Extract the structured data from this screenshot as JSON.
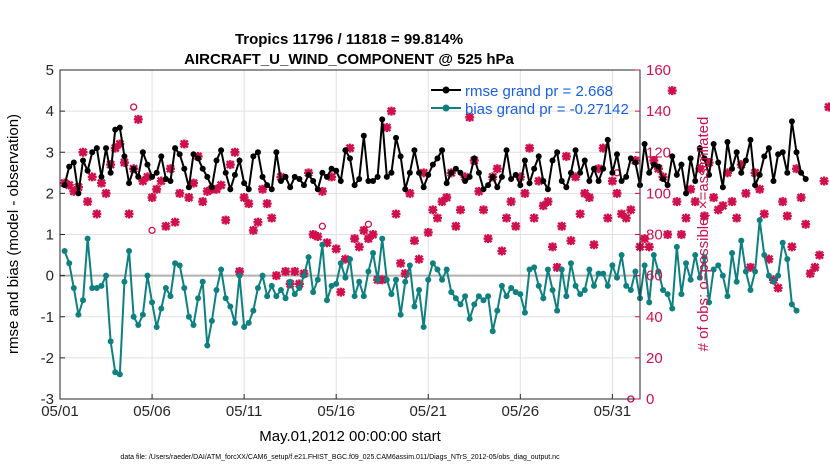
{
  "chart_data": {
    "type": "line",
    "title": "Tropics 11796 / 11818 = 99.814%",
    "subtitle": "AIRCRAFT_U_WIND_COMPONENT @ 525 hPa",
    "xlabel": "May.01,2012 00:00:00 start",
    "ylabel_left": "rmse and bias (model - observation)",
    "ylabel_right": "# of obs: o=possible; ×=assimilated",
    "footer": "data file: /Users/raeder/DAI/ATM_forcXX/CAM6_setup/f.e21.FHIST_BGC.f09_025.CAM6assim.011/Diags_NTrS_2012-05/obs_diag_output.nc",
    "xlim": [
      0,
      31.5
    ],
    "ylim_left": [
      -3,
      5
    ],
    "ylim_right": [
      0,
      160
    ],
    "x_ticks": [
      0,
      5,
      10,
      15,
      20,
      25,
      30
    ],
    "x_tick_labels": [
      "05/01",
      "05/06",
      "05/11",
      "05/16",
      "05/21",
      "05/26",
      "05/31"
    ],
    "y_ticks_left": [
      -3,
      -2,
      -1,
      0,
      1,
      2,
      3,
      4,
      5
    ],
    "y_tick_labels_left": [
      "-3",
      "-2",
      "-1",
      "0",
      "1",
      "2",
      "3",
      "4",
      "5"
    ],
    "y_ticks_right": [
      0,
      20,
      40,
      60,
      80,
      100,
      120,
      140,
      160
    ],
    "y_tick_labels_right": [
      "0",
      "20",
      "40",
      "60",
      "80",
      "100",
      "120",
      "140",
      "160"
    ],
    "grid": true,
    "legend_position": "top-right",
    "colors": {
      "rmse": "#000000",
      "bias": "#0e8080",
      "obs": "#d0104c",
      "zero_line": "#b0b0b0",
      "legend_text": "#1a5fe0"
    },
    "series": [
      {
        "name": "rmse grand pr = 2.668",
        "axis": "left",
        "x_start": 0.25,
        "x_step": 0.25,
        "values": [
          2.2,
          2.65,
          2.75,
          2.0,
          2.8,
          2.55,
          3.0,
          3.1,
          2.4,
          3.1,
          2.5,
          3.55,
          3.6,
          2.9,
          2.25,
          2.6,
          2.4,
          3.0,
          2.7,
          2.4,
          2.5,
          2.9,
          2.35,
          2.3,
          3.1,
          2.95,
          2.6,
          2.15,
          2.95,
          2.85,
          2.6,
          2.4,
          2.15,
          2.8,
          3.05,
          2.5,
          2.1,
          2.45,
          2.8,
          2.25,
          2.1,
          2.9,
          3.0,
          2.4,
          2.2,
          2.1,
          3.0,
          2.3,
          2.4,
          2.15,
          2.4,
          2.35,
          2.2,
          2.45,
          2.3,
          2.1,
          2.5,
          2.4,
          2.6,
          2.55,
          2.3,
          3.05,
          2.85,
          2.2,
          2.35,
          3.4,
          2.3,
          2.3,
          2.4,
          3.8,
          2.4,
          2.5,
          3.35,
          2.9,
          2.1,
          2.5,
          3.05,
          2.5,
          2.15,
          2.45,
          2.7,
          2.85,
          3.05,
          2.25,
          2.5,
          2.6,
          2.5,
          2.3,
          2.4,
          2.85,
          2.5,
          2.1,
          2.2,
          2.4,
          2.15,
          2.4,
          3.05,
          2.35,
          2.45,
          2.2,
          2.8,
          2.25,
          2.6,
          2.9,
          2.3,
          2.1,
          2.8,
          3.0,
          2.3,
          2.15,
          2.5,
          3.05,
          2.5,
          2.8,
          2.3,
          2.6,
          2.3,
          2.6,
          3.3,
          2.5,
          2.95,
          2.3,
          2.4,
          2.85,
          2.75,
          2.2,
          3.2,
          2.5,
          2.7,
          2.65,
          2.35,
          2.2,
          2.9,
          2.45,
          2.7,
          2.0,
          2.85,
          2.3,
          3.1,
          2.85,
          2.45,
          3.2,
          2.75,
          2.15,
          3.25,
          2.6,
          3.0,
          2.5,
          2.8,
          3.3,
          2.2,
          2.45,
          2.9,
          3.1,
          2.3,
          2.95,
          3.0,
          2.5,
          3.75,
          3.0,
          2.5,
          2.35
        ]
      },
      {
        "name": "bias grand pr = -0.27142",
        "axis": "left",
        "x_start": 0.25,
        "x_step": 0.25,
        "values": [
          0.6,
          0.3,
          -0.3,
          -0.95,
          -0.6,
          0.9,
          -0.3,
          -0.3,
          -0.25,
          0.0,
          -1.6,
          -2.35,
          -2.4,
          -0.15,
          0.6,
          -1.0,
          -1.2,
          -0.95,
          0.0,
          -0.65,
          -1.25,
          -0.8,
          -0.3,
          -0.5,
          0.3,
          0.25,
          -0.3,
          -1.0,
          -1.2,
          -0.55,
          -0.15,
          -1.7,
          -1.1,
          -0.35,
          0.15,
          -0.55,
          -0.75,
          -1.15,
          0.0,
          -1.25,
          -1.15,
          -0.85,
          -0.3,
          0.0,
          -0.5,
          -0.25,
          -0.5,
          -0.35,
          -0.55,
          -0.15,
          -0.45,
          -0.3,
          0.0,
          0.45,
          -0.4,
          -0.1,
          0.75,
          -0.6,
          -0.25,
          -0.2,
          0.3,
          -0.05,
          0.4,
          -0.5,
          -0.15,
          -0.5,
          0.1,
          0.55,
          -0.1,
          0.9,
          -0.1,
          -0.45,
          -0.1,
          -0.95,
          -0.15,
          0.25,
          -0.75,
          -0.35,
          -1.25,
          -0.1,
          0.3,
          0.15,
          -0.1,
          0.15,
          -0.4,
          -0.55,
          -0.7,
          -0.5,
          -1.05,
          -0.7,
          -0.5,
          -0.6,
          -0.5,
          -1.35,
          -0.85,
          -0.25,
          -0.5,
          -0.3,
          -0.4,
          -0.45,
          -0.9,
          0.15,
          0.2,
          -0.25,
          -0.55,
          0.15,
          -0.35,
          -0.85,
          0.15,
          -0.5,
          0.3,
          -0.25,
          -0.45,
          -0.35,
          0.15,
          -0.25,
          0.05,
          0.05,
          -0.25,
          0.25,
          -0.05,
          0.5,
          -0.25,
          -0.35,
          0.1,
          -0.55,
          0.25,
          -0.65,
          0.5,
          0.1,
          -0.35,
          -0.45,
          -0.8,
          0.7,
          -0.45,
          0.3,
          -0.1,
          0.5,
          -0.05,
          0.45,
          -0.65,
          0.15,
          0.25,
          0.0,
          -0.5,
          0.55,
          -0.15,
          0.85,
          0.1,
          -0.35,
          0.1,
          1.35,
          0.5,
          0.0,
          -0.15,
          0.0,
          0.8,
          0.4,
          -0.7,
          -0.85
        ]
      },
      {
        "name": "# obs assimilated",
        "axis": "right",
        "marker": "x",
        "x_start": 0.25,
        "x_step": 0.25,
        "values": [
          105,
          104,
          101,
          103,
          120,
          96,
          108,
          90,
          105,
          100,
          114,
          122,
          124,
          115,
          90,
          112,
          136,
          106,
          108,
          98,
          102,
          106,
          84,
          112,
          86,
          100,
          124,
          98,
          105,
          118,
          96,
          101,
          102,
          102,
          104,
          87,
          114,
          120,
          62,
          98,
          95,
          82,
          86,
          102,
          95,
          88,
          60,
          108,
          62,
          56,
          62,
          56,
          61,
          110,
          80,
          79,
          101,
          76,
          108,
          73,
          52,
          68,
          122,
          78,
          74,
          82,
          78,
          80,
          58,
          58,
          132,
          140,
          90,
          66,
          61,
          100,
          77,
          68,
          110,
          81,
          92,
          88,
          96,
          98,
          110,
          84,
          92,
          108,
          137,
          116,
          101,
          92,
          78,
          108,
          112,
          72,
          88,
          96,
          84,
          108,
          100,
          122,
          88,
          106,
          94,
          96,
          74,
          64,
          84,
          118,
          77,
          108,
          90,
          100,
          98,
          75,
          112,
          122,
          88,
          106,
          100,
          90,
          88,
          92,
          116,
          74,
          78,
          74,
          116,
          112,
          108,
          80,
          150,
          96,
          80,
          88,
          102,
          96,
          112,
          89,
          115,
          98,
          92,
          94,
          110,
          96,
          88,
          114,
          100,
          64,
          110,
          102,
          90,
          68,
          58,
          54,
          96,
          89,
          74,
          112,
          98,
          85,
          61,
          64,
          70,
          106,
          142
        ]
      },
      {
        "name": "# obs possible",
        "axis": "right",
        "marker": "o",
        "points": [
          [
            4.0,
            142
          ],
          [
            5.0,
            82
          ],
          [
            14.25,
            84
          ],
          [
            16.75,
            85
          ],
          [
            30.25,
            110
          ],
          [
            31.0,
            0
          ]
        ]
      }
    ]
  }
}
